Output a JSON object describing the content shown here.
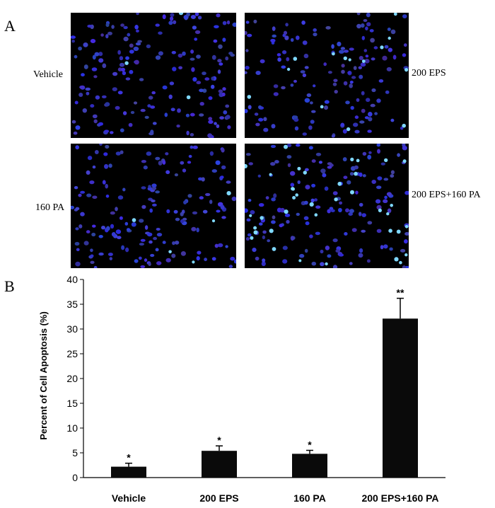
{
  "panels": {
    "a_label": "A",
    "b_label": "B"
  },
  "images": [
    {
      "label": "Vehicle",
      "cells": 170,
      "bright": 3,
      "seed": 11
    },
    {
      "label": "200 EPS",
      "cells": 140,
      "bright": 14,
      "seed": 23
    },
    {
      "label": "160 PA",
      "cells": 160,
      "bright": 5,
      "seed": 37
    },
    {
      "label": "200 EPS+160 PA",
      "cells": 150,
      "bright": 38,
      "seed": 53
    }
  ],
  "chart_data": {
    "type": "bar",
    "categories": [
      "Vehicle",
      "200 EPS",
      "160 PA",
      "200 EPS+160 PA"
    ],
    "values": [
      2.2,
      5.4,
      4.8,
      32.1
    ],
    "errors": [
      0.7,
      1.0,
      0.7,
      4.1
    ],
    "significance": [
      "*",
      "*",
      "*",
      "**"
    ],
    "ylabel": "Percent of Cell Apoptosis (%)",
    "xlabel": "",
    "ylim": [
      0,
      40
    ],
    "yticks": [
      0,
      5,
      10,
      15,
      20,
      25,
      30,
      35,
      40
    ],
    "bar_color": "#0a0a0a"
  },
  "colors": {
    "cell_blue": "#3a3ad8",
    "cell_bright": "#7fd8ff"
  }
}
